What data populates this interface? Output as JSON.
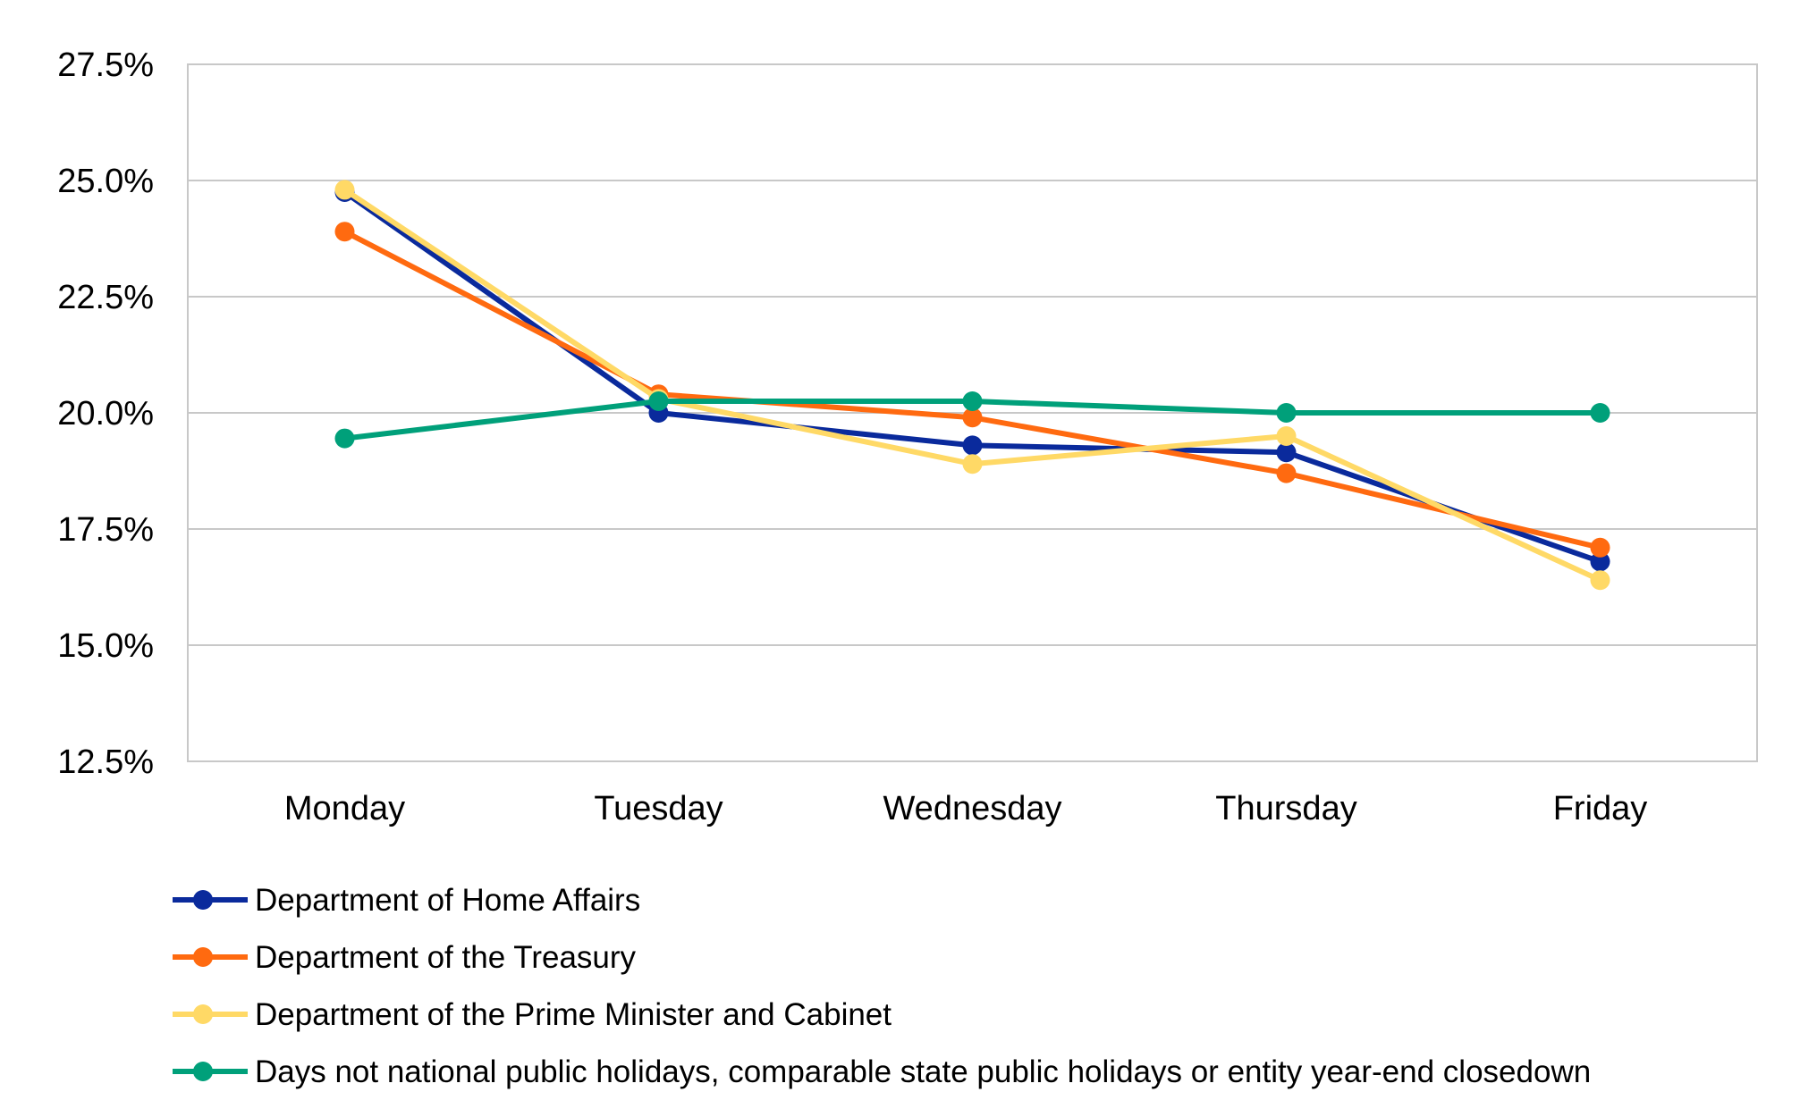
{
  "chart_data": {
    "type": "line",
    "title": "",
    "xlabel": "",
    "ylabel": "",
    "categories": [
      "Monday",
      "Tuesday",
      "Wednesday",
      "Thursday",
      "Friday"
    ],
    "ylim": [
      12.5,
      27.5
    ],
    "yticks": [
      12.5,
      15.0,
      17.5,
      20.0,
      22.5,
      25.0,
      27.5
    ],
    "ytick_labels": [
      "12.5%",
      "15.0%",
      "17.5%",
      "20.0%",
      "22.5%",
      "25.0%",
      "27.5%"
    ],
    "grid": true,
    "legend_position": "bottom-left",
    "series": [
      {
        "name": "Department of Home Affairs",
        "color": "#0a2a9c",
        "values": [
          24.75,
          20.0,
          19.3,
          19.15,
          16.8
        ]
      },
      {
        "name": "Department of the Treasury",
        "color": "#ff6a10",
        "values": [
          23.9,
          20.4,
          19.9,
          18.7,
          17.1
        ]
      },
      {
        "name": "Department of the Prime Minister and Cabinet",
        "color": "#ffd966",
        "values": [
          24.8,
          20.3,
          18.9,
          19.5,
          16.4
        ]
      },
      {
        "name": "Days not national public holidays, comparable state public holidays or entity year-end closedown",
        "color": "#00a07a",
        "values": [
          19.45,
          20.25,
          20.25,
          20.0,
          20.0
        ]
      }
    ]
  }
}
